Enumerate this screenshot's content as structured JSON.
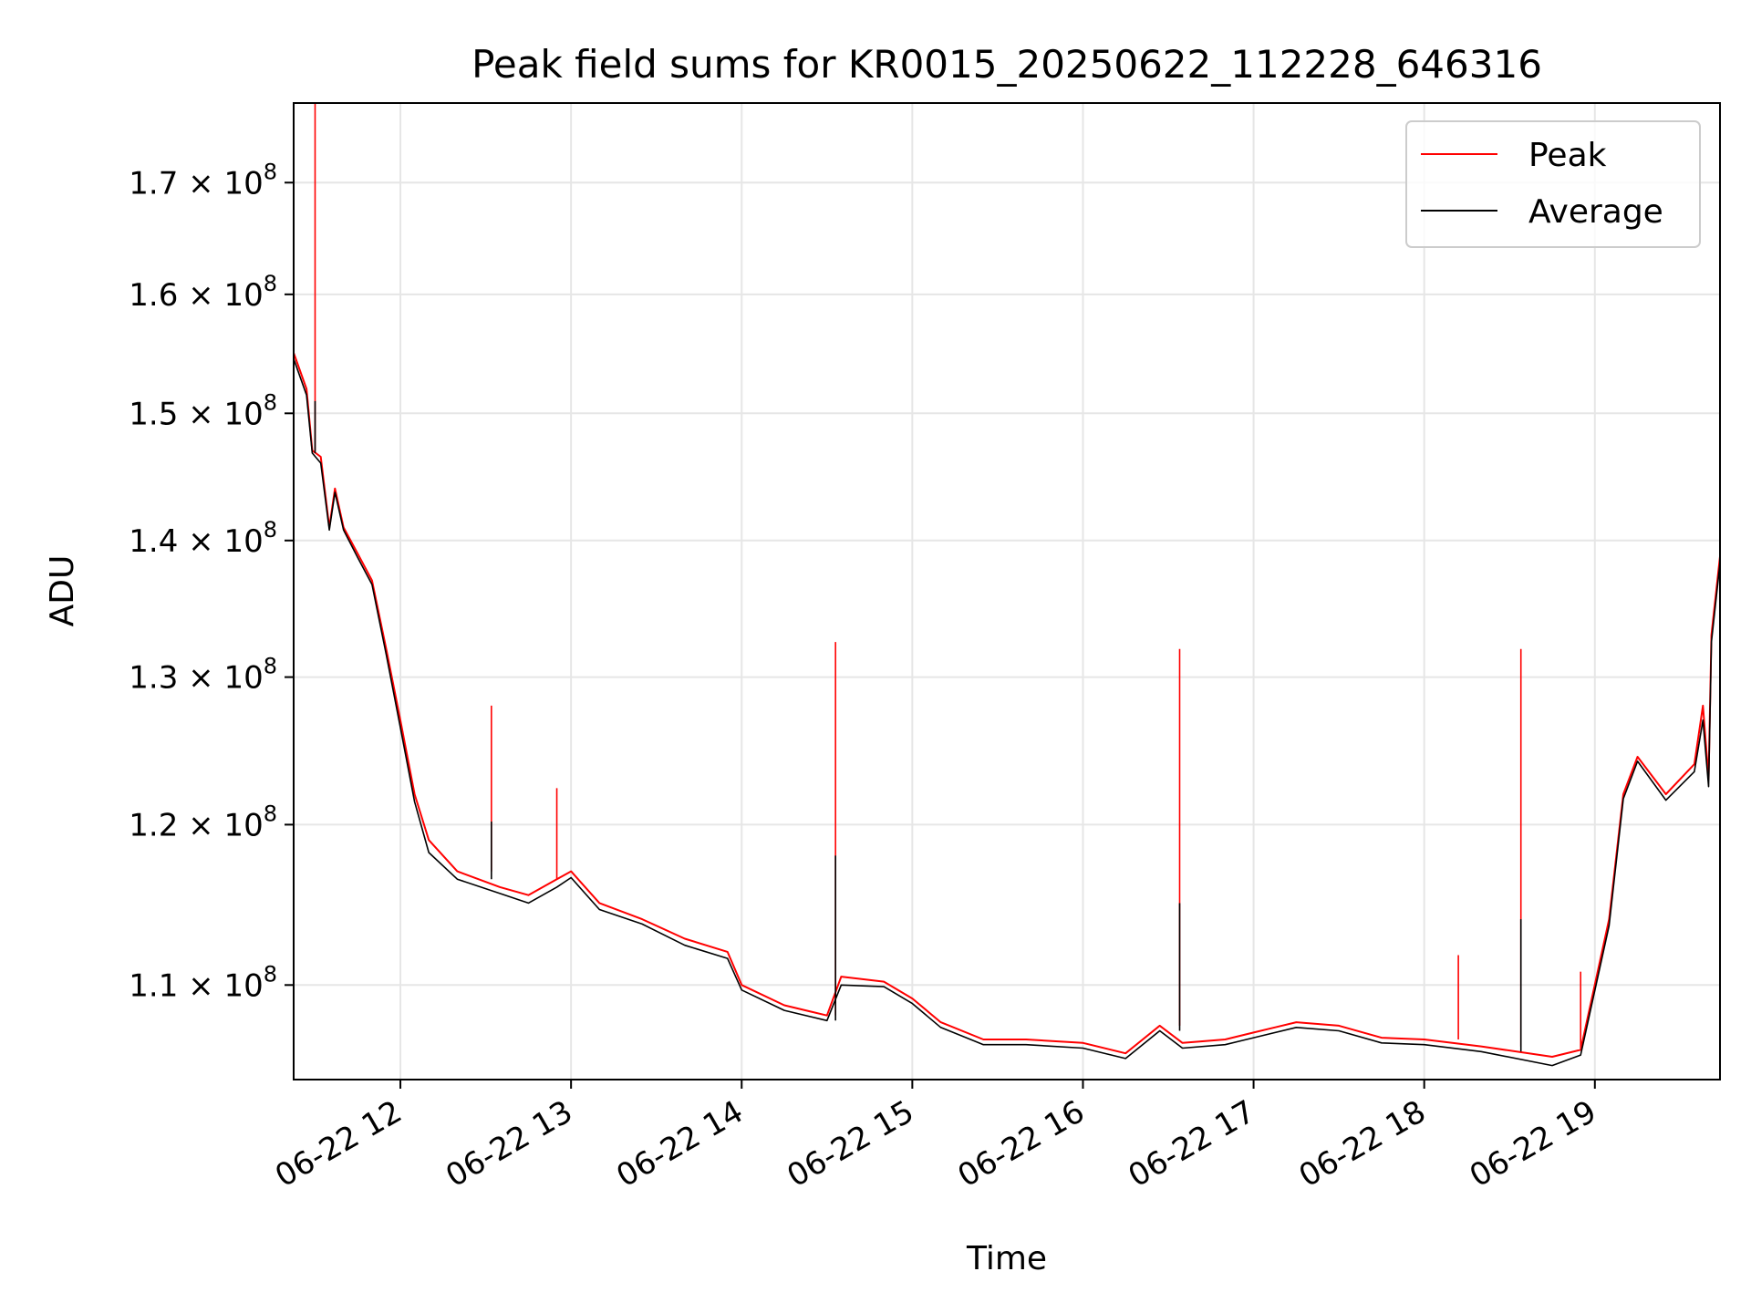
{
  "chart_data": {
    "type": "line",
    "title": "Peak field sums for KR0015_20250622_112228_646316",
    "xlabel": "Time",
    "ylabel": "ADU",
    "y_scale": "log",
    "ylim": [
      104500000,
      177500000
    ],
    "xlim": [
      "2025-06-22T11:22:28",
      "2025-06-22T19:44:00"
    ],
    "grid": true,
    "legend_position": "top-right",
    "x_ticks": [
      {
        "x": "2025-06-22T12:00",
        "label": "06-22 12"
      },
      {
        "x": "2025-06-22T13:00",
        "label": "06-22 13"
      },
      {
        "x": "2025-06-22T14:00",
        "label": "06-22 14"
      },
      {
        "x": "2025-06-22T15:00",
        "label": "06-22 15"
      },
      {
        "x": "2025-06-22T16:00",
        "label": "06-22 16"
      },
      {
        "x": "2025-06-22T17:00",
        "label": "06-22 17"
      },
      {
        "x": "2025-06-22T18:00",
        "label": "06-22 18"
      },
      {
        "x": "2025-06-22T19:00",
        "label": "06-22 19"
      }
    ],
    "y_ticks": [
      {
        "value": 110000000,
        "mantissa": "1.1",
        "exp": "8"
      },
      {
        "value": 120000000,
        "mantissa": "1.2",
        "exp": "8"
      },
      {
        "value": 130000000,
        "mantissa": "1.3",
        "exp": "8"
      },
      {
        "value": 140000000,
        "mantissa": "1.4",
        "exp": "8"
      },
      {
        "value": 150000000,
        "mantissa": "1.5",
        "exp": "8"
      },
      {
        "value": 160000000,
        "mantissa": "1.6",
        "exp": "8"
      },
      {
        "value": 170000000,
        "mantissa": "1.7",
        "exp": "8"
      }
    ],
    "series": [
      {
        "name": "Peak",
        "color": "#ff0000",
        "points": [
          [
            "2025-06-22T11:22:28",
            155000000
          ],
          [
            "2025-06-22T11:27",
            152000000
          ],
          [
            "2025-06-22T11:29",
            147000000
          ],
          [
            "2025-06-22T11:32",
            146500000
          ],
          [
            "2025-06-22T11:35",
            141000000
          ],
          [
            "2025-06-22T11:37",
            144000000
          ],
          [
            "2025-06-22T11:40",
            141000000
          ],
          [
            "2025-06-22T11:45",
            139000000
          ],
          [
            "2025-06-22T11:50",
            137000000
          ],
          [
            "2025-06-22T11:55",
            132000000
          ],
          [
            "2025-06-22T12:00",
            127000000
          ],
          [
            "2025-06-22T12:05",
            122000000
          ],
          [
            "2025-06-22T12:10",
            119000000
          ],
          [
            "2025-06-22T12:20",
            117000000
          ],
          [
            "2025-06-22T12:35",
            116000000
          ],
          [
            "2025-06-22T12:45",
            115500000
          ],
          [
            "2025-06-22T12:55",
            116500000
          ],
          [
            "2025-06-22T13:00",
            117000000
          ],
          [
            "2025-06-22T13:10",
            115000000
          ],
          [
            "2025-06-22T13:25",
            114000000
          ],
          [
            "2025-06-22T13:40",
            112800000
          ],
          [
            "2025-06-22T13:55",
            112000000
          ],
          [
            "2025-06-22T14:00",
            110000000
          ],
          [
            "2025-06-22T14:15",
            108800000
          ],
          [
            "2025-06-22T14:30",
            108200000
          ],
          [
            "2025-06-22T14:35",
            110500000
          ],
          [
            "2025-06-22T14:50",
            110200000
          ],
          [
            "2025-06-22T15:00",
            109200000
          ],
          [
            "2025-06-22T15:10",
            107800000
          ],
          [
            "2025-06-22T15:25",
            106800000
          ],
          [
            "2025-06-22T15:40",
            106800000
          ],
          [
            "2025-06-22T16:00",
            106600000
          ],
          [
            "2025-06-22T16:15",
            106000000
          ],
          [
            "2025-06-22T16:27",
            107600000
          ],
          [
            "2025-06-22T16:35",
            106600000
          ],
          [
            "2025-06-22T16:50",
            106800000
          ],
          [
            "2025-06-22T17:00",
            107200000
          ],
          [
            "2025-06-22T17:15",
            107800000
          ],
          [
            "2025-06-22T17:30",
            107600000
          ],
          [
            "2025-06-22T17:45",
            106900000
          ],
          [
            "2025-06-22T18:00",
            106800000
          ],
          [
            "2025-06-22T18:20",
            106400000
          ],
          [
            "2025-06-22T18:45",
            105800000
          ],
          [
            "2025-06-22T18:55",
            106200000
          ],
          [
            "2025-06-22T19:05",
            114000000
          ],
          [
            "2025-06-22T19:10",
            122000000
          ],
          [
            "2025-06-22T19:15",
            124500000
          ],
          [
            "2025-06-22T19:25",
            122000000
          ],
          [
            "2025-06-22T19:35",
            124000000
          ],
          [
            "2025-06-22T19:38",
            128000000
          ],
          [
            "2025-06-22T19:40",
            123000000
          ],
          [
            "2025-06-22T19:41",
            133000000
          ],
          [
            "2025-06-22T19:44",
            138800000
          ]
        ],
        "spikes": [
          [
            "2025-06-22T11:30",
            178000000
          ],
          [
            "2025-06-22T12:32",
            128000000
          ],
          [
            "2025-06-22T12:55",
            122400000
          ],
          [
            "2025-06-22T14:33",
            132500000
          ],
          [
            "2025-06-22T16:34",
            132000000
          ],
          [
            "2025-06-22T18:34",
            132000000
          ],
          [
            "2025-06-22T18:12",
            111800000
          ],
          [
            "2025-06-22T18:55",
            110800000
          ]
        ]
      },
      {
        "name": "Average",
        "color": "#000000",
        "points": [
          [
            "2025-06-22T11:22:28",
            154500000
          ],
          [
            "2025-06-22T11:27",
            151500000
          ],
          [
            "2025-06-22T11:29",
            146800000
          ],
          [
            "2025-06-22T11:32",
            146000000
          ],
          [
            "2025-06-22T11:35",
            140800000
          ],
          [
            "2025-06-22T11:37",
            143700000
          ],
          [
            "2025-06-22T11:40",
            140800000
          ],
          [
            "2025-06-22T11:45",
            138700000
          ],
          [
            "2025-06-22T11:50",
            136700000
          ],
          [
            "2025-06-22T11:55",
            131600000
          ],
          [
            "2025-06-22T12:00",
            126500000
          ],
          [
            "2025-06-22T12:05",
            121500000
          ],
          [
            "2025-06-22T12:10",
            118200000
          ],
          [
            "2025-06-22T12:20",
            116500000
          ],
          [
            "2025-06-22T12:35",
            115600000
          ],
          [
            "2025-06-22T12:45",
            115000000
          ],
          [
            "2025-06-22T12:55",
            116000000
          ],
          [
            "2025-06-22T13:00",
            116600000
          ],
          [
            "2025-06-22T13:10",
            114600000
          ],
          [
            "2025-06-22T13:25",
            113700000
          ],
          [
            "2025-06-22T13:40",
            112400000
          ],
          [
            "2025-06-22T13:55",
            111600000
          ],
          [
            "2025-06-22T14:00",
            109700000
          ],
          [
            "2025-06-22T14:15",
            108500000
          ],
          [
            "2025-06-22T14:30",
            107900000
          ],
          [
            "2025-06-22T14:35",
            110000000
          ],
          [
            "2025-06-22T14:50",
            109900000
          ],
          [
            "2025-06-22T15:00",
            108900000
          ],
          [
            "2025-06-22T15:10",
            107500000
          ],
          [
            "2025-06-22T15:25",
            106500000
          ],
          [
            "2025-06-22T15:40",
            106500000
          ],
          [
            "2025-06-22T16:00",
            106300000
          ],
          [
            "2025-06-22T16:15",
            105700000
          ],
          [
            "2025-06-22T16:27",
            107300000
          ],
          [
            "2025-06-22T16:35",
            106300000
          ],
          [
            "2025-06-22T16:50",
            106500000
          ],
          [
            "2025-06-22T17:00",
            106900000
          ],
          [
            "2025-06-22T17:15",
            107500000
          ],
          [
            "2025-06-22T17:30",
            107300000
          ],
          [
            "2025-06-22T17:45",
            106600000
          ],
          [
            "2025-06-22T18:00",
            106500000
          ],
          [
            "2025-06-22T18:20",
            106100000
          ],
          [
            "2025-06-22T18:45",
            105300000
          ],
          [
            "2025-06-22T18:55",
            105900000
          ],
          [
            "2025-06-22T19:05",
            113600000
          ],
          [
            "2025-06-22T19:10",
            121700000
          ],
          [
            "2025-06-22T19:15",
            124200000
          ],
          [
            "2025-06-22T19:25",
            121600000
          ],
          [
            "2025-06-22T19:35",
            123500000
          ],
          [
            "2025-06-22T19:38",
            127000000
          ],
          [
            "2025-06-22T19:40",
            122500000
          ],
          [
            "2025-06-22T19:41",
            132500000
          ],
          [
            "2025-06-22T19:44",
            138300000
          ]
        ],
        "spikes": [
          [
            "2025-06-22T11:30",
            151000000
          ],
          [
            "2025-06-22T12:32",
            120200000
          ],
          [
            "2025-06-22T14:33",
            118000000
          ],
          [
            "2025-06-22T16:34",
            115000000
          ],
          [
            "2025-06-22T18:34",
            114000000
          ]
        ]
      }
    ]
  }
}
